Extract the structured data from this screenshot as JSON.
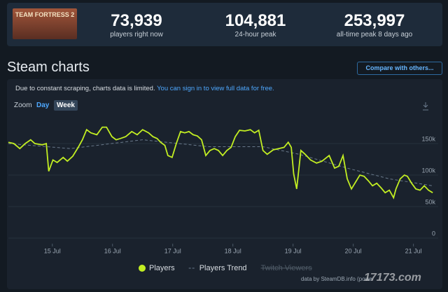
{
  "logo": "TEAM FORTRESS 2",
  "header": {
    "stats": [
      {
        "value": "73,939",
        "label": "players right now"
      },
      {
        "value": "104,881",
        "label": "24-hour peak"
      },
      {
        "value": "253,997",
        "label": "all-time peak 8 days ago"
      }
    ]
  },
  "section_title": "Steam charts",
  "compare_button": "Compare with others...",
  "notice": {
    "text": "Due to constant scraping, charts data is limited.",
    "link": "You can sign in to view full data for free."
  },
  "zoom": {
    "label": "Zoom",
    "options": [
      "Day",
      "Week"
    ]
  },
  "chart_data": {
    "type": "line",
    "xlim": [
      14.27,
      21.33
    ],
    "xticks": [
      {
        "value": 15,
        "label": "15 Jul"
      },
      {
        "value": 16,
        "label": "16 Jul"
      },
      {
        "value": 17,
        "label": "17 Jul"
      },
      {
        "value": 18,
        "label": "18 Jul"
      },
      {
        "value": 19,
        "label": "19 Jul"
      },
      {
        "value": 20,
        "label": "20 Jul"
      },
      {
        "value": 21,
        "label": "21 Jul"
      }
    ],
    "ylim": [
      0,
      200000
    ],
    "yticks": [
      0,
      {
        "value": 50000,
        "label": "50k"
      },
      {
        "value": 100000,
        "label": "100k"
      },
      {
        "value": 150000,
        "label": "150k"
      }
    ],
    "grid": true,
    "series": [
      {
        "name": "Players",
        "color": "#c2ee22",
        "x": [
          14.27,
          14.36,
          14.46,
          14.55,
          14.64,
          14.71,
          14.83,
          14.9,
          14.94,
          15.01,
          15.08,
          15.18,
          15.25,
          15.34,
          15.43,
          15.5,
          15.57,
          15.64,
          15.74,
          15.83,
          15.9,
          15.99,
          16.06,
          16.13,
          16.22,
          16.32,
          16.41,
          16.5,
          16.6,
          16.67,
          16.74,
          16.8,
          16.87,
          16.92,
          16.99,
          17.06,
          17.13,
          17.2,
          17.27,
          17.34,
          17.41,
          17.48,
          17.55,
          17.62,
          17.69,
          17.76,
          17.83,
          17.9,
          17.97,
          18.04,
          18.11,
          18.2,
          18.29,
          18.36,
          18.43,
          18.5,
          18.57,
          18.67,
          18.76,
          18.85,
          18.92,
          18.97,
          19.01,
          19.06,
          19.13,
          19.2,
          19.29,
          19.39,
          19.48,
          19.6,
          19.69,
          19.76,
          19.83,
          19.9,
          19.97,
          20.04,
          20.11,
          20.18,
          20.25,
          20.32,
          20.39,
          20.46,
          20.53,
          20.6,
          20.67,
          20.71,
          20.78,
          20.85,
          20.9,
          20.97,
          21.04,
          21.11,
          21.18,
          21.25,
          21.32
        ],
        "values": [
          152000,
          150000,
          142000,
          150000,
          156000,
          150000,
          148000,
          150000,
          106000,
          124000,
          120000,
          128000,
          122000,
          130000,
          144000,
          156000,
          172000,
          167000,
          164000,
          176000,
          176000,
          161000,
          156000,
          158000,
          161000,
          169000,
          164000,
          172000,
          167000,
          161000,
          158000,
          152000,
          147000,
          131000,
          128000,
          150000,
          169000,
          167000,
          169000,
          164000,
          162000,
          156000,
          131000,
          139000,
          142000,
          139000,
          131000,
          139000,
          144000,
          161000,
          171000,
          170000,
          172000,
          167000,
          171000,
          139000,
          133000,
          140000,
          142000,
          144000,
          152000,
          144000,
          102000,
          78000,
          139000,
          133000,
          124000,
          119000,
          122000,
          131000,
          111000,
          114000,
          131000,
          94000,
          78000,
          89000,
          100000,
          98000,
          91000,
          83000,
          87000,
          80000,
          72000,
          76000,
          64000,
          78000,
          94000,
          100000,
          98000,
          87000,
          78000,
          76000,
          83000,
          76000,
          72000
        ]
      },
      {
        "name": "Players Trend",
        "color": "#6a7a8c",
        "dashed": true,
        "x": [
          14.27,
          15.3,
          16.5,
          17.6,
          18.5,
          19.1,
          19.9,
          20.6,
          21.32
        ],
        "values": [
          150000,
          142000,
          156000,
          145000,
          145000,
          133000,
          111000,
          94000,
          83000
        ]
      }
    ],
    "disabled_series": [
      "Twitch Viewers"
    ],
    "legend": "bottom"
  },
  "footer": "data by SteamDB.info (powe",
  "watermark": "17173.com"
}
